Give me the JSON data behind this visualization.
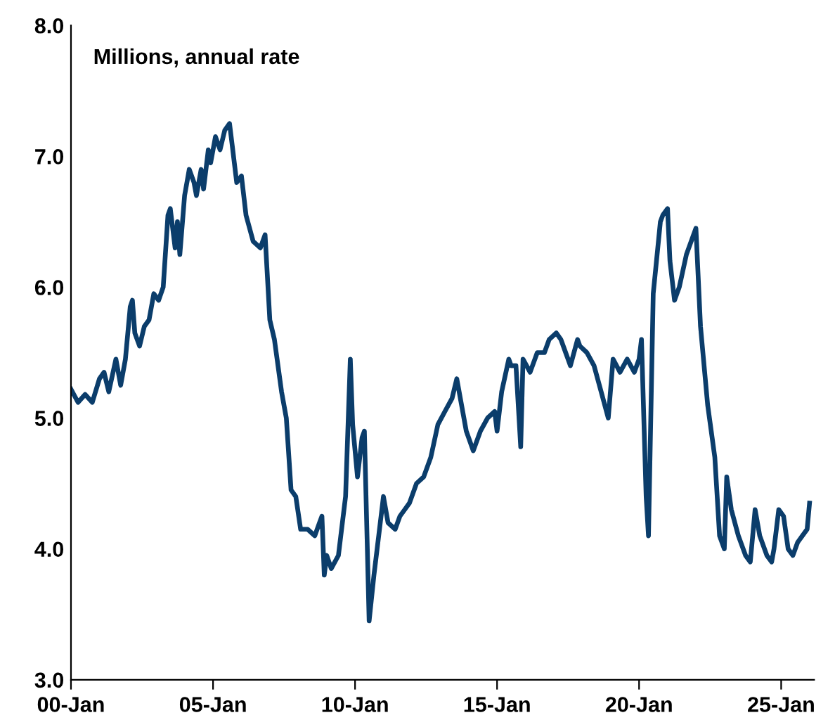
{
  "chart_data": {
    "type": "line",
    "title": "Millions, annual rate",
    "x": [
      "2000-01",
      "2000-04",
      "2000-07",
      "2000-10",
      "2001-01",
      "2001-03",
      "2001-05",
      "2001-08",
      "2001-10",
      "2001-12",
      "2002-02",
      "2002-03",
      "2002-04",
      "2002-06",
      "2002-08",
      "2002-10",
      "2002-12",
      "2003-02",
      "2003-04",
      "2003-06",
      "2003-07",
      "2003-08",
      "2003-09",
      "2003-10",
      "2003-11",
      "2004-01",
      "2004-03",
      "2004-05",
      "2004-06",
      "2004-08",
      "2004-09",
      "2004-11",
      "2004-12",
      "2005-02",
      "2005-04",
      "2005-06",
      "2005-08",
      "2005-09",
      "2005-11",
      "2006-01",
      "2006-03",
      "2006-06",
      "2006-09",
      "2006-11",
      "2007-01",
      "2007-03",
      "2007-06",
      "2007-08",
      "2007-10",
      "2007-12",
      "2008-02",
      "2008-05",
      "2008-08",
      "2008-10",
      "2008-11",
      "2008-12",
      "2009-01",
      "2009-03",
      "2009-06",
      "2009-09",
      "2009-11",
      "2009-12",
      "2010-02",
      "2010-04",
      "2010-05",
      "2010-07",
      "2010-09",
      "2010-11",
      "2011-01",
      "2011-03",
      "2011-06",
      "2011-08",
      "2011-10",
      "2011-12",
      "2012-03",
      "2012-06",
      "2012-09",
      "2012-12",
      "2013-03",
      "2013-06",
      "2013-08",
      "2013-10",
      "2013-12",
      "2014-03",
      "2014-06",
      "2014-09",
      "2014-12",
      "2015-01",
      "2015-03",
      "2015-06",
      "2015-07",
      "2015-09",
      "2015-11",
      "2015-12",
      "2016-03",
      "2016-06",
      "2016-09",
      "2016-11",
      "2017-02",
      "2017-04",
      "2017-06",
      "2017-08",
      "2017-11",
      "2017-12",
      "2018-03",
      "2018-06",
      "2018-09",
      "2018-12",
      "2019-02",
      "2019-05",
      "2019-08",
      "2019-11",
      "2020-01",
      "2020-02",
      "2020-04",
      "2020-05",
      "2020-07",
      "2020-10",
      "2020-11",
      "2021-01",
      "2021-02",
      "2021-04",
      "2021-06",
      "2021-09",
      "2022-01",
      "2022-03",
      "2022-06",
      "2022-09",
      "2022-11",
      "2023-01",
      "2023-02",
      "2023-04",
      "2023-07",
      "2023-10",
      "2023-12",
      "2024-02",
      "2024-04",
      "2024-07",
      "2024-09",
      "2024-10",
      "2024-12",
      "2025-02",
      "2025-04",
      "2025-06",
      "2025-08",
      "2025-10",
      "2025-12",
      "2026-01"
    ],
    "series": [
      {
        "color": "#0b3d6b",
        "values": [
          5.22,
          5.12,
          5.18,
          5.12,
          5.3,
          5.35,
          5.2,
          5.45,
          5.25,
          5.45,
          5.85,
          5.9,
          5.65,
          5.55,
          5.7,
          5.75,
          5.95,
          5.9,
          6.0,
          6.55,
          6.6,
          6.45,
          6.3,
          6.5,
          6.25,
          6.7,
          6.9,
          6.8,
          6.7,
          6.9,
          6.75,
          7.05,
          6.95,
          7.15,
          7.05,
          7.2,
          7.25,
          7.1,
          6.8,
          6.85,
          6.55,
          6.35,
          6.3,
          6.4,
          5.75,
          5.6,
          5.2,
          5.0,
          4.45,
          4.4,
          4.15,
          4.15,
          4.1,
          4.2,
          4.25,
          3.8,
          3.95,
          3.85,
          3.95,
          4.4,
          5.45,
          4.95,
          4.55,
          4.85,
          4.9,
          3.45,
          3.8,
          4.1,
          4.4,
          4.2,
          4.15,
          4.25,
          4.3,
          4.35,
          4.5,
          4.55,
          4.7,
          4.95,
          5.05,
          5.15,
          5.3,
          5.1,
          4.9,
          4.75,
          4.9,
          5.0,
          5.05,
          4.9,
          5.2,
          5.45,
          5.4,
          5.4,
          4.78,
          5.45,
          5.35,
          5.5,
          5.5,
          5.6,
          5.65,
          5.6,
          5.5,
          5.4,
          5.6,
          5.55,
          5.5,
          5.4,
          5.2,
          5.0,
          5.45,
          5.35,
          5.45,
          5.35,
          5.45,
          5.6,
          4.4,
          4.1,
          5.95,
          6.5,
          6.55,
          6.6,
          6.2,
          5.9,
          6.0,
          6.25,
          6.45,
          5.7,
          5.1,
          4.7,
          4.1,
          4.0,
          4.55,
          4.3,
          4.1,
          3.95,
          3.9,
          4.3,
          4.1,
          3.95,
          3.9,
          4.0,
          4.3,
          4.25,
          4.0,
          3.95,
          4.05,
          4.1,
          4.15,
          4.35
        ]
      }
    ],
    "xlim": [
      "2000-01",
      "2026-03"
    ],
    "xticks": [
      {
        "value": "2000-01",
        "label": "00-Jan"
      },
      {
        "value": "2005-01",
        "label": "05-Jan"
      },
      {
        "value": "2010-01",
        "label": "10-Jan"
      },
      {
        "value": "2015-01",
        "label": "15-Jan"
      },
      {
        "value": "2020-01",
        "label": "20-Jan"
      },
      {
        "value": "2025-01",
        "label": "25-Jan"
      }
    ],
    "ylim": [
      3,
      8
    ],
    "yticks": [
      {
        "value": 3,
        "label": "3.0"
      },
      {
        "value": 4,
        "label": "4.0"
      },
      {
        "value": 5,
        "label": "5.0"
      },
      {
        "value": 6,
        "label": "6.0"
      },
      {
        "value": 7,
        "label": "7.0"
      },
      {
        "value": 8,
        "label": "8.0"
      }
    ],
    "grid": false
  }
}
